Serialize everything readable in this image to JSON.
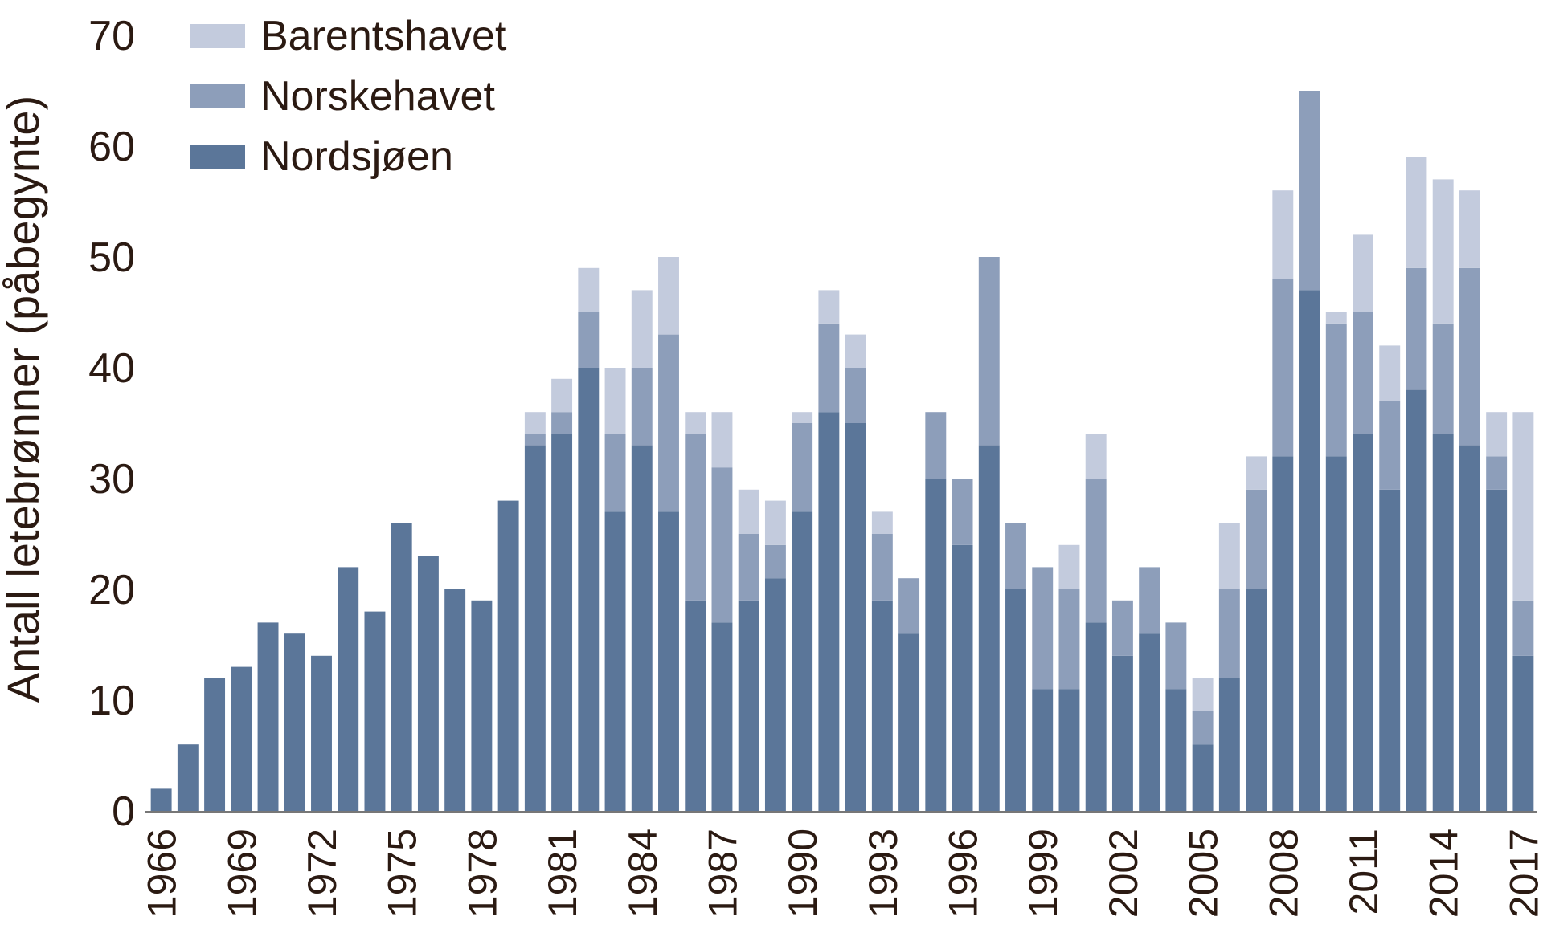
{
  "chart_data": {
    "type": "bar",
    "stacked": true,
    "ylabel": "Antall letebrønner (påbegynte)",
    "xlabel": "",
    "ylim": [
      0,
      70
    ],
    "yticks": [
      0,
      10,
      20,
      30,
      40,
      50,
      60,
      70
    ],
    "x": [
      1966,
      1967,
      1968,
      1969,
      1970,
      1971,
      1972,
      1973,
      1974,
      1975,
      1976,
      1977,
      1978,
      1979,
      1980,
      1981,
      1982,
      1983,
      1984,
      1985,
      1986,
      1987,
      1988,
      1989,
      1990,
      1991,
      1992,
      1993,
      1994,
      1995,
      1996,
      1997,
      1998,
      1999,
      2000,
      2001,
      2002,
      2003,
      2004,
      2005,
      2006,
      2007,
      2008,
      2009,
      2010,
      2011,
      2012,
      2013,
      2014,
      2015,
      2016,
      2017
    ],
    "xtick_labels": [
      "1966",
      "1969",
      "1972",
      "1975",
      "1978",
      "1981",
      "1984",
      "1987",
      "1990",
      "1993",
      "1996",
      "1999",
      "2002",
      "2005",
      "2008",
      "2011",
      "2014",
      "2017"
    ],
    "grid": false,
    "legend_position": "top-left",
    "series": [
      {
        "name": "Nordsjøen",
        "color": "#5b7699",
        "values": [
          2,
          6,
          12,
          13,
          17,
          16,
          14,
          22,
          18,
          26,
          23,
          20,
          19,
          28,
          33,
          34,
          40,
          27,
          33,
          27,
          19,
          17,
          19,
          21,
          27,
          36,
          35,
          19,
          16,
          30,
          24,
          33,
          20,
          11,
          11,
          17,
          14,
          16,
          11,
          6,
          12,
          20,
          32,
          47,
          32,
          34,
          29,
          38,
          34,
          33,
          29,
          14
        ]
      },
      {
        "name": "Norskehavet",
        "color": "#8d9eba",
        "values": [
          0,
          0,
          0,
          0,
          0,
          0,
          0,
          0,
          0,
          0,
          0,
          0,
          0,
          0,
          1,
          2,
          5,
          7,
          7,
          16,
          15,
          14,
          6,
          3,
          8,
          8,
          5,
          6,
          5,
          6,
          6,
          17,
          6,
          11,
          9,
          13,
          5,
          6,
          6,
          3,
          8,
          9,
          16,
          18,
          12,
          11,
          8,
          11,
          10,
          16,
          3,
          5
        ]
      },
      {
        "name": "Barentshavet",
        "color": "#c3cbdd",
        "values": [
          0,
          0,
          0,
          0,
          0,
          0,
          0,
          0,
          0,
          0,
          0,
          0,
          0,
          0,
          2,
          3,
          4,
          6,
          7,
          7,
          2,
          5,
          4,
          4,
          1,
          3,
          3,
          2,
          0,
          0,
          0,
          0,
          0,
          0,
          4,
          4,
          0,
          0,
          0,
          3,
          6,
          3,
          8,
          0,
          1,
          7,
          5,
          10,
          13,
          7,
          4,
          17
        ]
      }
    ]
  }
}
